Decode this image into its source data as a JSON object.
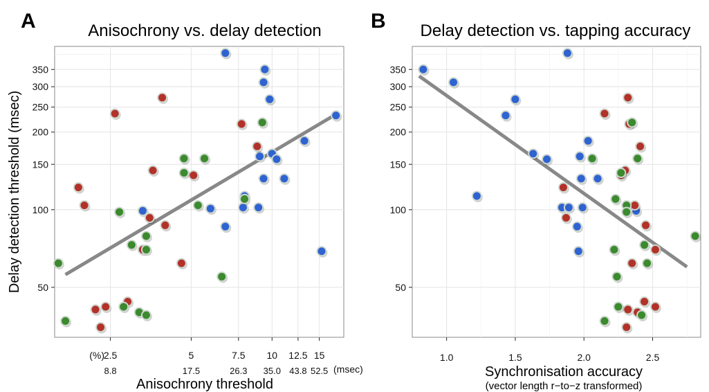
{
  "colors": {
    "blue": "#2f63d1",
    "red": "#b2322a",
    "green": "#3b8a2e"
  },
  "chart_data": [
    {
      "panel": "A",
      "type": "scatter",
      "title": "Anisochrony vs. delay detection",
      "xlabel": "Anisochrony threshold",
      "ylabel": "Delay detection threshold (msec)",
      "x_scale": "log",
      "y_scale": "log",
      "xlim": [
        1.55,
        18.5
      ],
      "ylim": [
        32,
        430
      ],
      "x_ticks_percent": [
        "2.5",
        "5",
        "7.5",
        "10",
        "12.5",
        "15"
      ],
      "x_ticks_msec": [
        "8.8",
        "17.5",
        "26.3",
        "35.0",
        "43.8",
        "52.5"
      ],
      "x_unit_percent": "(%)",
      "x_unit_msec": "(msec)",
      "y_ticks": [
        "50",
        "100",
        "150",
        "200",
        "250",
        "300",
        "350"
      ],
      "fit": {
        "x": [
          1.7,
          17.0
        ],
        "y": [
          56,
          232
        ]
      },
      "points": [
        {
          "x": 6.7,
          "y": 405,
          "g": "blue"
        },
        {
          "x": 9.4,
          "y": 350,
          "g": "blue"
        },
        {
          "x": 9.3,
          "y": 312,
          "g": "blue"
        },
        {
          "x": 9.8,
          "y": 268,
          "g": "blue"
        },
        {
          "x": 17.3,
          "y": 232,
          "g": "blue"
        },
        {
          "x": 13.2,
          "y": 185,
          "g": "blue"
        },
        {
          "x": 10.0,
          "y": 165,
          "g": "blue"
        },
        {
          "x": 10.4,
          "y": 157,
          "g": "blue"
        },
        {
          "x": 9.0,
          "y": 161,
          "g": "blue"
        },
        {
          "x": 9.3,
          "y": 132,
          "g": "blue"
        },
        {
          "x": 11.1,
          "y": 132,
          "g": "blue"
        },
        {
          "x": 7.9,
          "y": 113,
          "g": "blue"
        },
        {
          "x": 7.8,
          "y": 102,
          "g": "blue"
        },
        {
          "x": 8.9,
          "y": 102,
          "g": "blue"
        },
        {
          "x": 5.9,
          "y": 101,
          "g": "blue"
        },
        {
          "x": 3.3,
          "y": 99,
          "g": "blue"
        },
        {
          "x": 6.7,
          "y": 86,
          "g": "blue"
        },
        {
          "x": 15.3,
          "y": 69,
          "g": "blue"
        },
        {
          "x": 3.9,
          "y": 272,
          "g": "red"
        },
        {
          "x": 2.6,
          "y": 236,
          "g": "red"
        },
        {
          "x": 7.7,
          "y": 215,
          "g": "red"
        },
        {
          "x": 8.8,
          "y": 176,
          "g": "red"
        },
        {
          "x": 3.6,
          "y": 142,
          "g": "red"
        },
        {
          "x": 5.1,
          "y": 136,
          "g": "red"
        },
        {
          "x": 1.9,
          "y": 122,
          "g": "red"
        },
        {
          "x": 2.0,
          "y": 104,
          "g": "red"
        },
        {
          "x": 3.5,
          "y": 93,
          "g": "red"
        },
        {
          "x": 4.0,
          "y": 87,
          "g": "red"
        },
        {
          "x": 3.3,
          "y": 70,
          "g": "red"
        },
        {
          "x": 4.6,
          "y": 62,
          "g": "red"
        },
        {
          "x": 2.9,
          "y": 44,
          "g": "red"
        },
        {
          "x": 2.4,
          "y": 42,
          "g": "red"
        },
        {
          "x": 2.2,
          "y": 41,
          "g": "red"
        },
        {
          "x": 2.3,
          "y": 35,
          "g": "red"
        },
        {
          "x": 9.2,
          "y": 218,
          "g": "green"
        },
        {
          "x": 4.7,
          "y": 158,
          "g": "green"
        },
        {
          "x": 5.6,
          "y": 158,
          "g": "green"
        },
        {
          "x": 4.7,
          "y": 139,
          "g": "green"
        },
        {
          "x": 7.9,
          "y": 110,
          "g": "green"
        },
        {
          "x": 5.3,
          "y": 104,
          "g": "green"
        },
        {
          "x": 2.7,
          "y": 98,
          "g": "green"
        },
        {
          "x": 3.4,
          "y": 79,
          "g": "green"
        },
        {
          "x": 3.0,
          "y": 73,
          "g": "green"
        },
        {
          "x": 3.4,
          "y": 70,
          "g": "green"
        },
        {
          "x": 1.6,
          "y": 62,
          "g": "green"
        },
        {
          "x": 6.5,
          "y": 55,
          "g": "green"
        },
        {
          "x": 2.8,
          "y": 42,
          "g": "green"
        },
        {
          "x": 3.2,
          "y": 40,
          "g": "green"
        },
        {
          "x": 3.4,
          "y": 39,
          "g": "green"
        },
        {
          "x": 1.7,
          "y": 37,
          "g": "green"
        }
      ]
    },
    {
      "panel": "B",
      "type": "scatter",
      "title": "Delay detection vs. tapping accuracy",
      "xlabel": "Synchronisation accuracy",
      "xsublabel": "(vector length r−to−z transformed)",
      "x_scale": "linear",
      "y_scale": "log",
      "xlim": [
        0.75,
        2.85
      ],
      "ylim": [
        32,
        430
      ],
      "x_ticks": [
        "1.0",
        "1.5",
        "2.0",
        "2.5"
      ],
      "y_ticks": [
        "50",
        "100",
        "150",
        "200",
        "250",
        "300",
        "350"
      ],
      "fit": {
        "x": [
          0.8,
          2.75
        ],
        "y": [
          330,
          60
        ]
      },
      "points": [
        {
          "x": 0.83,
          "y": 350,
          "g": "blue"
        },
        {
          "x": 1.05,
          "y": 312,
          "g": "blue"
        },
        {
          "x": 1.88,
          "y": 405,
          "g": "blue"
        },
        {
          "x": 1.5,
          "y": 268,
          "g": "blue"
        },
        {
          "x": 1.43,
          "y": 232,
          "g": "blue"
        },
        {
          "x": 2.03,
          "y": 185,
          "g": "blue"
        },
        {
          "x": 1.63,
          "y": 165,
          "g": "blue"
        },
        {
          "x": 1.73,
          "y": 157,
          "g": "blue"
        },
        {
          "x": 1.97,
          "y": 161,
          "g": "blue"
        },
        {
          "x": 1.98,
          "y": 132,
          "g": "blue"
        },
        {
          "x": 2.1,
          "y": 132,
          "g": "blue"
        },
        {
          "x": 1.22,
          "y": 113,
          "g": "blue"
        },
        {
          "x": 1.84,
          "y": 102,
          "g": "blue"
        },
        {
          "x": 1.89,
          "y": 102,
          "g": "blue"
        },
        {
          "x": 1.99,
          "y": 102,
          "g": "blue"
        },
        {
          "x": 2.38,
          "y": 99,
          "g": "blue"
        },
        {
          "x": 1.95,
          "y": 86,
          "g": "blue"
        },
        {
          "x": 1.96,
          "y": 69,
          "g": "blue"
        },
        {
          "x": 2.32,
          "y": 272,
          "g": "red"
        },
        {
          "x": 2.15,
          "y": 236,
          "g": "red"
        },
        {
          "x": 2.33,
          "y": 215,
          "g": "red"
        },
        {
          "x": 2.41,
          "y": 176,
          "g": "red"
        },
        {
          "x": 2.3,
          "y": 142,
          "g": "red"
        },
        {
          "x": 2.27,
          "y": 136,
          "g": "red"
        },
        {
          "x": 1.85,
          "y": 122,
          "g": "red"
        },
        {
          "x": 2.37,
          "y": 104,
          "g": "red"
        },
        {
          "x": 1.87,
          "y": 93,
          "g": "red"
        },
        {
          "x": 2.45,
          "y": 87,
          "g": "red"
        },
        {
          "x": 2.52,
          "y": 70,
          "g": "red"
        },
        {
          "x": 2.35,
          "y": 62,
          "g": "red"
        },
        {
          "x": 2.44,
          "y": 44,
          "g": "red"
        },
        {
          "x": 2.52,
          "y": 42,
          "g": "red"
        },
        {
          "x": 2.32,
          "y": 41,
          "g": "red"
        },
        {
          "x": 2.31,
          "y": 35,
          "g": "red"
        },
        {
          "x": 2.39,
          "y": 40,
          "g": "red"
        },
        {
          "x": 2.35,
          "y": 218,
          "g": "green"
        },
        {
          "x": 2.06,
          "y": 158,
          "g": "green"
        },
        {
          "x": 2.39,
          "y": 158,
          "g": "green"
        },
        {
          "x": 2.27,
          "y": 139,
          "g": "green"
        },
        {
          "x": 2.23,
          "y": 110,
          "g": "green"
        },
        {
          "x": 2.31,
          "y": 104,
          "g": "green"
        },
        {
          "x": 2.31,
          "y": 98,
          "g": "green"
        },
        {
          "x": 2.81,
          "y": 79,
          "g": "green"
        },
        {
          "x": 2.44,
          "y": 73,
          "g": "green"
        },
        {
          "x": 2.22,
          "y": 70,
          "g": "green"
        },
        {
          "x": 2.46,
          "y": 62,
          "g": "green"
        },
        {
          "x": 2.24,
          "y": 55,
          "g": "green"
        },
        {
          "x": 2.25,
          "y": 42,
          "g": "green"
        },
        {
          "x": 2.42,
          "y": 39,
          "g": "green"
        },
        {
          "x": 2.15,
          "y": 37,
          "g": "green"
        }
      ]
    }
  ]
}
